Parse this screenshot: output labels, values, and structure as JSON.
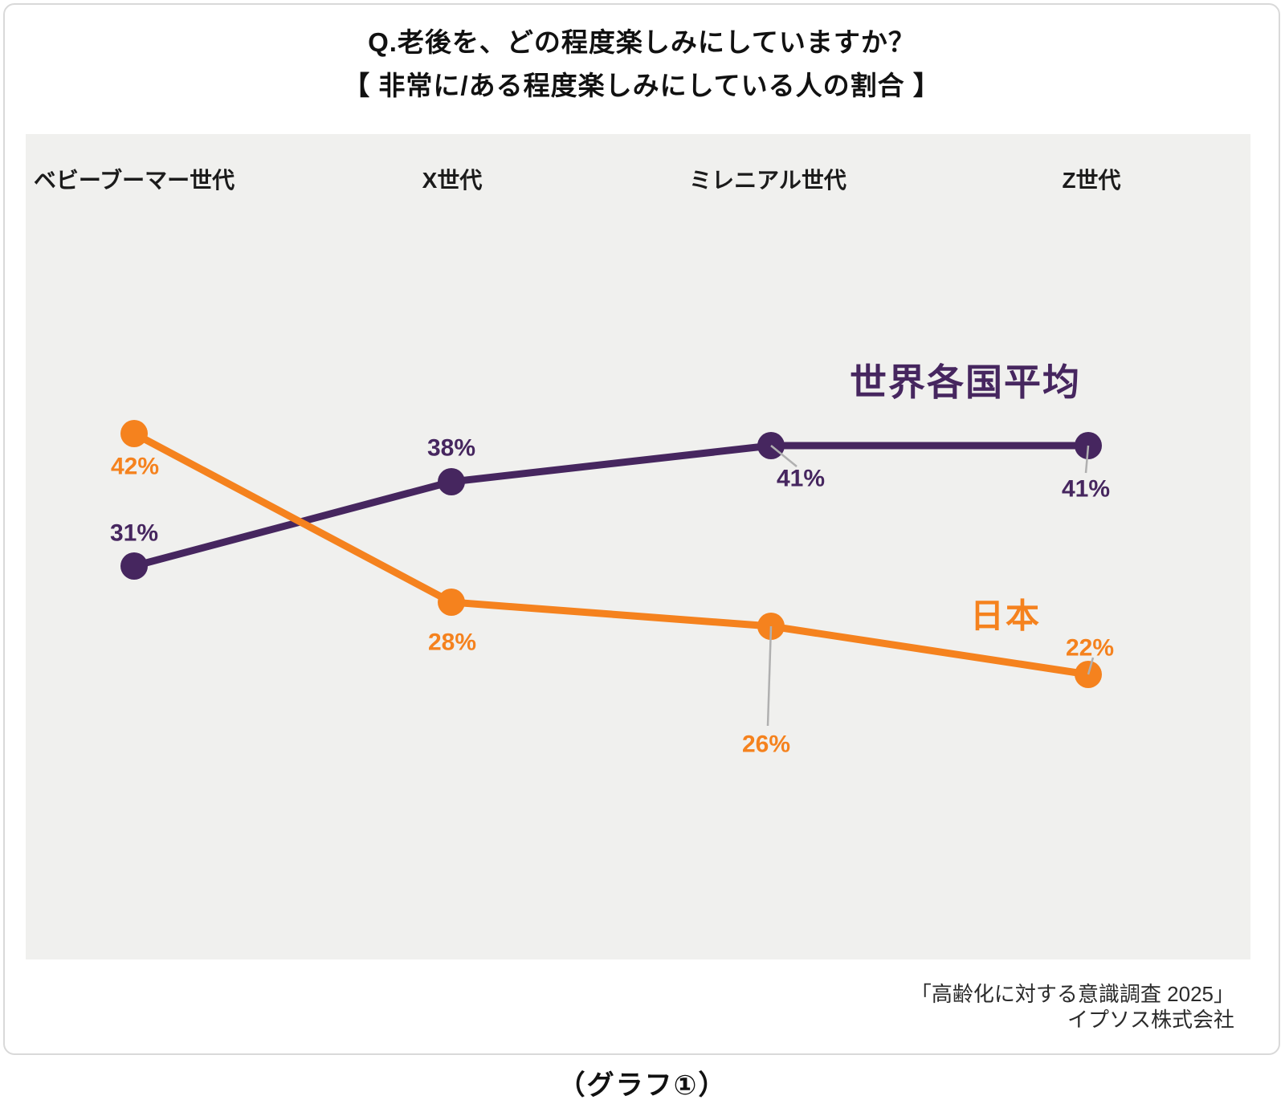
{
  "header": {
    "title_line1": "Q.老後を、どの程度楽しみにしていますか？",
    "title_line2": "【 非常に/ある程度楽しみにしている人の割合 】"
  },
  "chart_data": {
    "type": "line",
    "categories": [
      "ベビーブーマー世代",
      "X世代",
      "ミレニアル世代",
      "Z世代"
    ],
    "series": [
      {
        "name": "世界各国平均",
        "values": [
          31,
          38,
          41,
          41
        ],
        "color": "#46265F"
      },
      {
        "name": "日本",
        "values": [
          42,
          28,
          26,
          22
        ],
        "color": "#F5821E"
      }
    ],
    "value_suffix": "%",
    "data_labels": true,
    "grid": false,
    "axes_visible": false,
    "legend_position": "inline-near-lines",
    "panel_background": "#F0F0EE",
    "leader_line_color": "#B0B0B0"
  },
  "source": {
    "line1": "「高齢化に対する意識調査 2025」",
    "line2": "イプソス株式会社"
  },
  "footer": {
    "caption": "（グラフ①）"
  }
}
